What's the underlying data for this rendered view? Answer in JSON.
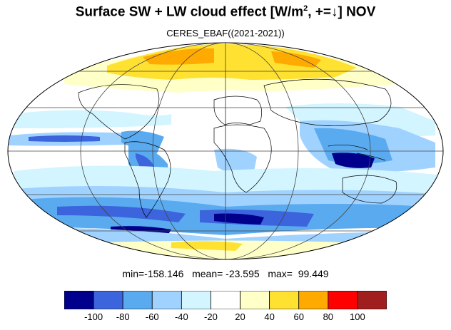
{
  "header": {
    "title_main": "Surface SW + LW cloud effect [W/m",
    "title_sup": "2",
    "title_tail": ", +=↓]  NOV",
    "subtitle": "CERES_EBAF((2021-2021))"
  },
  "stats": {
    "text": "min=-158.146   mean= -23.595   max=  99.449"
  },
  "colorbar": {
    "boundaries": [
      -100,
      -80,
      -60,
      -40,
      -20,
      20,
      40,
      60,
      80,
      100
    ],
    "labels": [
      "-100",
      "-80",
      "-60",
      "-40",
      "-20",
      "20",
      "40",
      "60",
      "80",
      "100"
    ],
    "colors": [
      "#00008c",
      "#3c64dc",
      "#5aaaf0",
      "#a0d2ff",
      "#d2f5ff",
      "#ffffff",
      "#ffffc8",
      "#ffe132",
      "#ffaa00",
      "#ff0000",
      "#a01e1e"
    ]
  },
  "map": {
    "projection": "Mollweide",
    "field_colors": {
      "strong_negative": "#00008c",
      "negative": "#3c64dc",
      "moderate_negative": "#5aaaf0",
      "weak_negative": "#a0d2ff",
      "very_weak_negative": "#d2f5ff",
      "neutral": "#ffffff",
      "weak_positive": "#ffffc8",
      "positive": "#ffe132",
      "strong_positive": "#ffaa00"
    }
  }
}
